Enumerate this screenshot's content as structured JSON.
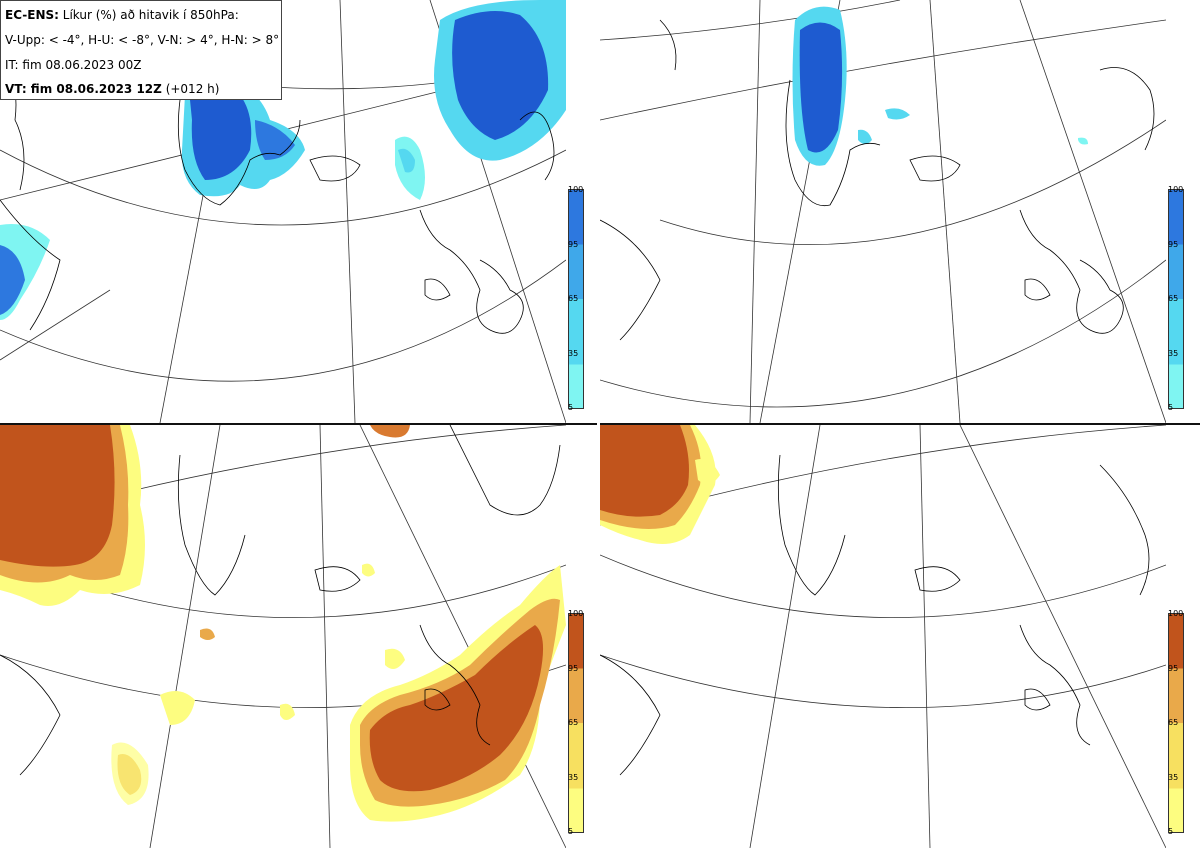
{
  "title": {
    "label_bold": "EC-ENS:",
    "label_rest": " Líkur (%) að hitavik í 850hPa:",
    "thresholds": "V-Upp: < -4°, H-U: < -8°, V-N: > 4°, H-N: > 8°",
    "init_time": "IT: fim 08.06.2023 00Z",
    "valid_bold": "VT: fim 08.06.2023 12Z",
    "valid_rest": " (+012 h)"
  },
  "colorbar_ticks": [
    "100",
    "95",
    "65",
    "35",
    "5"
  ],
  "colors": {
    "cold": [
      "#7ff5f2",
      "#55d8f0",
      "#3fa8ea",
      "#2d78df",
      "#1e5bd0"
    ],
    "warm": [
      "#fdfd80",
      "#f7e060",
      "#e9a94a",
      "#d97a30",
      "#c1541c"
    ],
    "coast": "#000000",
    "grid": "#333333"
  },
  "panels": [
    {
      "id": "top-left",
      "variable": "cold-anomaly-below-4"
    },
    {
      "id": "top-right",
      "variable": "cold-anomaly-below-8"
    },
    {
      "id": "bottom-left",
      "variable": "warm-anomaly-above-4"
    },
    {
      "id": "bottom-right",
      "variable": "warm-anomaly-above-8"
    }
  ]
}
